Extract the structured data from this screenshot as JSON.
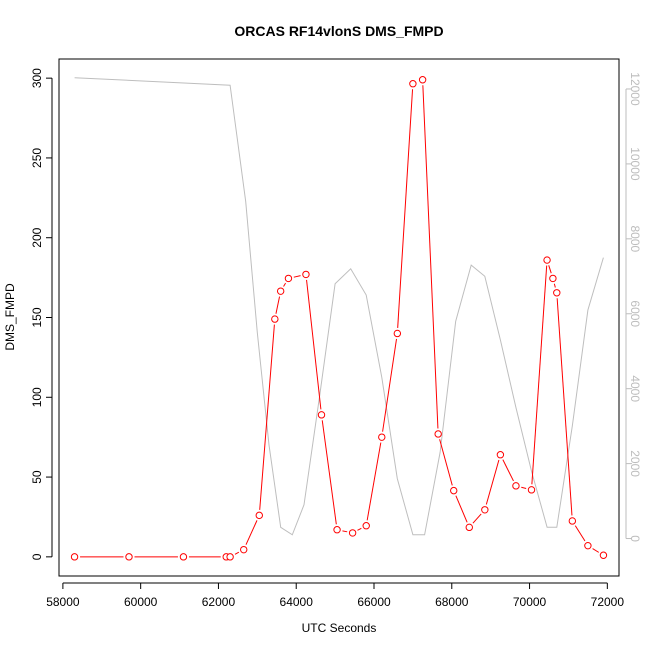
{
  "chart_data": {
    "type": "line",
    "title": "ORCAS RF14vlonS DMS_FMPD",
    "xlabel": "UTC Seconds",
    "ylabel": "DMS_FMPD",
    "xlim": [
      57900,
      72300
    ],
    "ylim": [
      -12,
      312
    ],
    "y2lim": [
      -1000,
      12800
    ],
    "x_ticks": [
      58000,
      60000,
      62000,
      64000,
      66000,
      68000,
      70000,
      72000
    ],
    "y_ticks": [
      0,
      50,
      100,
      150,
      200,
      250,
      300
    ],
    "y2_ticks": [
      0,
      2000,
      4000,
      6000,
      8000,
      10000,
      12000
    ],
    "series": [
      {
        "axis": "left",
        "color": "#ff0000",
        "style": "line-with-open-circles",
        "points": [
          [
            58300,
            0
          ],
          [
            59700,
            0
          ],
          [
            61100,
            0
          ],
          [
            62200,
            0
          ],
          [
            62300,
            0
          ],
          [
            62650,
            4.5
          ],
          [
            63050,
            26
          ],
          [
            63450,
            149
          ],
          [
            63600,
            166.5
          ],
          [
            63800,
            174.5
          ],
          [
            64250,
            177
          ],
          [
            64650,
            89
          ],
          [
            65050,
            17
          ],
          [
            65450,
            15
          ],
          [
            65800,
            19.5
          ],
          [
            66200,
            75
          ],
          [
            66600,
            140
          ],
          [
            67000,
            296.5
          ],
          [
            67250,
            299
          ],
          [
            67650,
            77
          ],
          [
            68050,
            41.5
          ],
          [
            68450,
            18.5
          ],
          [
            68850,
            29.5
          ],
          [
            69250,
            64
          ],
          [
            69650,
            44.5
          ],
          [
            70050,
            42
          ],
          [
            70450,
            186
          ],
          [
            70600,
            174.5
          ],
          [
            70700,
            165.5
          ],
          [
            71100,
            22.5
          ],
          [
            71500,
            7
          ],
          [
            71900,
            1
          ]
        ]
      },
      {
        "axis": "right",
        "color": "#bebebe",
        "style": "line",
        "points": [
          [
            58300,
            12300
          ],
          [
            62300,
            12100
          ],
          [
            62700,
            9000
          ],
          [
            63000,
            5500
          ],
          [
            63300,
            2500
          ],
          [
            63600,
            300
          ],
          [
            63900,
            100
          ],
          [
            64200,
            900
          ],
          [
            64600,
            3800
          ],
          [
            65000,
            6800
          ],
          [
            65400,
            7200
          ],
          [
            65800,
            6500
          ],
          [
            66200,
            4300
          ],
          [
            66600,
            1600
          ],
          [
            67000,
            100
          ],
          [
            67300,
            100
          ],
          [
            67700,
            2300
          ],
          [
            68100,
            5800
          ],
          [
            68500,
            7300
          ],
          [
            68850,
            7000
          ],
          [
            69250,
            5300
          ],
          [
            69650,
            3500
          ],
          [
            70050,
            1800
          ],
          [
            70450,
            300
          ],
          [
            70700,
            300
          ],
          [
            71100,
            3000
          ],
          [
            71500,
            6100
          ],
          [
            71900,
            7500
          ]
        ]
      }
    ]
  }
}
